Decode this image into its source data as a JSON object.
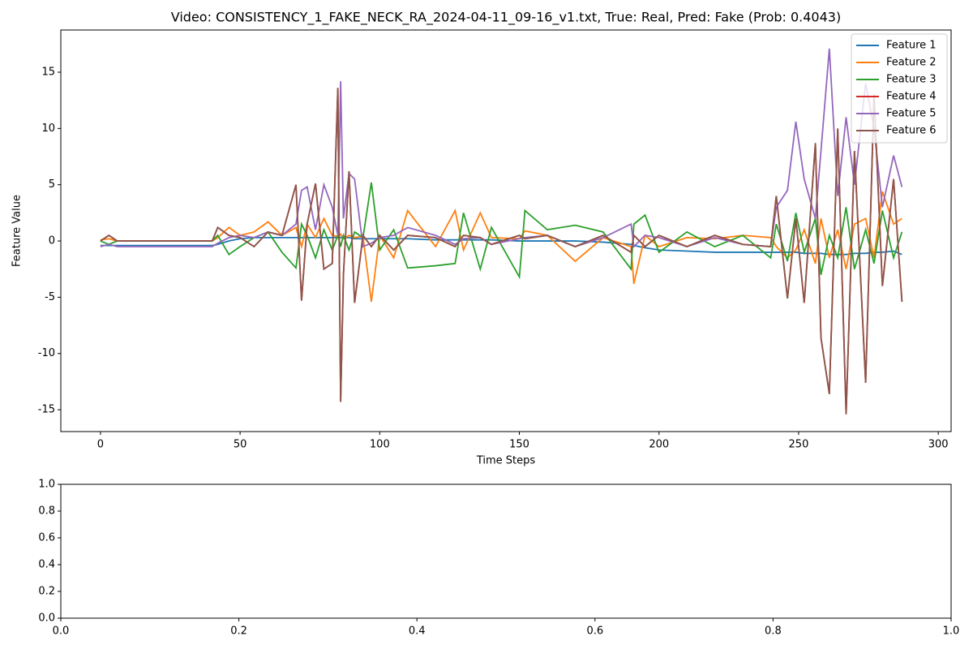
{
  "chart_data": [
    {
      "type": "line",
      "title": "Video: CONSISTENCY_1_FAKE_NECK_RA_2024-04-11_09-16_v1.txt, True: Real, Pred: Fake (Prob: 0.4043)",
      "xlabel": "Time Steps",
      "ylabel": "Feature Value",
      "x": [
        0,
        3,
        6,
        10,
        20,
        30,
        40,
        42,
        46,
        50,
        55,
        60,
        65,
        70,
        72,
        74,
        77,
        80,
        83,
        85,
        86,
        87,
        89,
        91,
        94,
        97,
        100,
        105,
        110,
        120,
        127,
        130,
        136,
        140,
        150,
        152,
        160,
        170,
        180,
        190,
        191,
        195,
        200,
        210,
        220,
        230,
        240,
        242,
        246,
        249,
        252,
        256,
        258,
        261,
        264,
        267,
        270,
        274,
        277,
        280,
        284,
        287
      ],
      "series": [
        {
          "name": "Feature 1",
          "color": "#1f77b4",
          "values": [
            -0.4,
            -0.4,
            -0.4,
            -0.4,
            -0.4,
            -0.4,
            -0.4,
            -0.3,
            0,
            0.2,
            0.3,
            0.3,
            0.3,
            0.3,
            0.3,
            0.3,
            0.3,
            0.3,
            0.3,
            0.3,
            0.3,
            0.3,
            0.3,
            0.2,
            0.2,
            0.2,
            0.2,
            0.2,
            0.2,
            0.1,
            0.1,
            0.1,
            0.1,
            0.1,
            0,
            0,
            0,
            0,
            -0.1,
            -0.3,
            -0.4,
            -0.6,
            -0.8,
            -0.9,
            -1.0,
            -1.0,
            -1.0,
            -1.0,
            -1.0,
            -1.0,
            -1.1,
            -1.1,
            -1.1,
            -1.2,
            -1.2,
            -1.2,
            -1.1,
            -1.1,
            -1.0,
            -1.0,
            -0.9,
            -1.2
          ]
        },
        {
          "name": "Feature 2",
          "color": "#ff7f0e",
          "values": [
            0.1,
            0.2,
            0,
            0,
            0,
            0,
            0,
            0.3,
            1.2,
            0.5,
            0.8,
            1.7,
            0.5,
            1.2,
            -0.5,
            1.5,
            0.3,
            2.0,
            0.5,
            0.4,
            0.6,
            0.2,
            0.5,
            0.3,
            0.4,
            -5.4,
            0.5,
            -1.5,
            2.7,
            -0.5,
            2.7,
            -0.8,
            2.5,
            0.3,
            0.2,
            0.9,
            0.5,
            -1.8,
            0.3,
            -0.5,
            -3.8,
            0.5,
            -0.5,
            0.3,
            0.2,
            0.5,
            0.3,
            -0.5,
            -1.5,
            -0.8,
            1.0,
            -2.0,
            2.0,
            -1.5,
            1.0,
            -2.5,
            1.5,
            2.0,
            -1.5,
            4.4,
            1.5,
            2.0
          ]
        },
        {
          "name": "Feature 3",
          "color": "#2ca02c",
          "values": [
            0,
            -0.3,
            0,
            0,
            0,
            0,
            0,
            0.5,
            -1.2,
            -0.5,
            0.3,
            0.8,
            -1.0,
            -2.4,
            1.5,
            0.5,
            -1.5,
            1.0,
            -0.8,
            0.5,
            -0.5,
            0.5,
            -0.8,
            0.8,
            0.3,
            5.2,
            -0.8,
            1.0,
            -2.4,
            -2.2,
            -2.0,
            2.5,
            -2.5,
            1.2,
            -3.2,
            2.7,
            1.0,
            1.4,
            0.8,
            -2.5,
            1.5,
            2.3,
            -1.0,
            0.8,
            -0.5,
            0.5,
            -1.5,
            1.5,
            -1.8,
            2.5,
            -1.0,
            2.0,
            -3.0,
            0.5,
            -1.5,
            3.0,
            -2.5,
            1.0,
            -2.0,
            2.7,
            -1.5,
            0.8
          ]
        },
        {
          "name": "Feature 4",
          "color": "#d62728",
          "values": [
            0,
            0.5,
            0,
            0,
            0,
            0,
            0,
            1.2,
            0.5,
            0.3,
            -0.5,
            0.8,
            0.5,
            5.0,
            -5.3,
            1.5,
            5.1,
            -2.5,
            -2.0,
            13.6,
            -14.3,
            -3.0,
            6.2,
            -5.5,
            0.5,
            -0.5,
            0.5,
            -0.8,
            0.5,
            0.3,
            -0.5,
            0.5,
            0.3,
            -0.3,
            0.5,
            0.2,
            0.5,
            -0.5,
            0.5,
            -1.0,
            0.5,
            -0.5,
            0.5,
            -0.5,
            0.5,
            -0.3,
            -0.5,
            4.0,
            -5.1,
            2.0,
            -5.5,
            8.7,
            -8.6,
            -13.6,
            10.0,
            -15.4,
            8.0,
            -12.6,
            13.0,
            -4.0,
            5.5,
            -5.4
          ]
        },
        {
          "name": "Feature 5",
          "color": "#9467bd",
          "values": [
            -0.5,
            -0.3,
            -0.5,
            -0.5,
            -0.5,
            -0.5,
            -0.5,
            -0.2,
            0.3,
            0.5,
            0.3,
            0.8,
            0.5,
            1.5,
            4.5,
            4.8,
            1.0,
            5.0,
            3.0,
            0.5,
            14.2,
            2.0,
            6.0,
            5.5,
            -0.5,
            -0.2,
            0.3,
            0.5,
            1.2,
            0.5,
            -0.3,
            0.2,
            0.3,
            -0.3,
            0.2,
            0.3,
            0.5,
            -0.5,
            0.3,
            1.5,
            -0.5,
            0.5,
            0.3,
            -0.5,
            0.3,
            -0.3,
            -0.5,
            3.0,
            4.5,
            10.6,
            5.5,
            2.0,
            8.0,
            17.1,
            4.0,
            11.0,
            5.0,
            14.0,
            10.0,
            3.0,
            7.6,
            4.8
          ]
        },
        {
          "name": "Feature 6",
          "color": "#8c564b",
          "values": [
            0,
            0.5,
            0,
            0,
            0,
            0,
            0,
            1.2,
            0.5,
            0.3,
            -0.5,
            0.8,
            0.5,
            5.0,
            -5.3,
            1.5,
            5.1,
            -2.5,
            -2.0,
            13.6,
            -14.3,
            -3.0,
            6.2,
            -5.5,
            0.5,
            -0.5,
            0.5,
            -0.8,
            0.5,
            0.3,
            -0.5,
            0.5,
            0.3,
            -0.3,
            0.5,
            0.2,
            0.5,
            -0.5,
            0.5,
            -1.0,
            0.5,
            -0.5,
            0.5,
            -0.5,
            0.5,
            -0.3,
            -0.5,
            4.0,
            -5.1,
            2.0,
            -5.5,
            8.7,
            -8.6,
            -13.6,
            10.0,
            -15.4,
            8.0,
            -12.6,
            13.0,
            -4.0,
            5.5,
            -5.4
          ]
        }
      ],
      "xlim": [
        -14.2,
        304.6
      ],
      "xticks": [
        0,
        50,
        100,
        150,
        200,
        250,
        300
      ],
      "ylim": [
        -16.94,
        18.75
      ],
      "yticks": [
        -15,
        -10,
        -5,
        0,
        5,
        10,
        15
      ],
      "legend": "upper right"
    },
    {
      "type": "line",
      "series": [],
      "xlim": [
        0,
        1
      ],
      "xticks": [
        {
          "value": 0,
          "label": "0.0"
        },
        {
          "value": 0.2,
          "label": "0.2"
        },
        {
          "value": 0.4,
          "label": "0.4"
        },
        {
          "value": 0.6,
          "label": "0.6"
        },
        {
          "value": 0.8,
          "label": "0.8"
        },
        {
          "value": 1,
          "label": "1.0"
        }
      ],
      "ylim": [
        0,
        1
      ],
      "yticks": [
        {
          "value": 0,
          "label": "0.0"
        },
        {
          "value": 0.2,
          "label": "0.2"
        },
        {
          "value": 0.4,
          "label": "0.4"
        },
        {
          "value": 0.6,
          "label": "0.6"
        },
        {
          "value": 0.8,
          "label": "0.8"
        },
        {
          "value": 1,
          "label": "1.0"
        }
      ]
    }
  ]
}
